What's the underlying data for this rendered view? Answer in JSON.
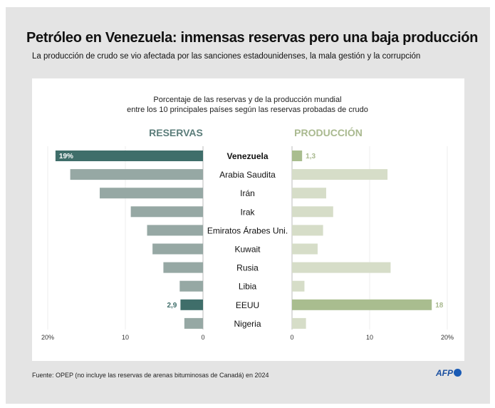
{
  "title": "Petróleo en Venezuela: inmensas reservas pero una baja producción",
  "subtitle": "La producción de crudo se vio afectada por las sanciones estadounidenses, la mala gestión y la corrupción",
  "source": "Fuente: OPEP (no incluye las reservas de arenas bituminosas de Canadá) en 2024",
  "logo": "AFP",
  "chart_data": {
    "type": "bar",
    "orientation": "horizontal-butterfly",
    "title_lines": [
      "Porcentaje de las reservas y de la producción mundial",
      "entre los 10 principales países según las reservas probadas de crudo"
    ],
    "categories": [
      "Venezuela",
      "Arabia Saudita",
      "Irán",
      "Irak",
      "Emiratos Árabes Uni.",
      "Kuwait",
      "Rusia",
      "Libia",
      "EEUU",
      "Nigeria"
    ],
    "highlight": [
      "Venezuela",
      "EEUU"
    ],
    "series": [
      {
        "name": "RESERVAS",
        "side": "left",
        "values": [
          19,
          17.1,
          13.3,
          9.3,
          7.2,
          6.5,
          5.1,
          3.0,
          2.9,
          2.4
        ],
        "data_labels": {
          "Venezuela": "19%",
          "EEUU": "2,9"
        },
        "color": "#96a8a4",
        "highlight_color": "#3f6e6a",
        "header_color": "#5b7d7a",
        "ticks": [
          "20%",
          "10",
          "0"
        ],
        "xlim": [
          0,
          20
        ]
      },
      {
        "name": "PRODUCCIÓN",
        "side": "right",
        "values": [
          1.3,
          12.3,
          4.4,
          5.3,
          4.0,
          3.3,
          12.7,
          1.6,
          18,
          1.8
        ],
        "data_labels": {
          "Venezuela": "1,3",
          "EEUU": "18"
        },
        "color": "#d6ddc8",
        "highlight_color": "#a9bd8f",
        "header_color": "#a9b98f",
        "ticks": [
          "0",
          "10",
          "20%"
        ],
        "xlim": [
          0,
          20
        ]
      }
    ],
    "grid": true
  }
}
